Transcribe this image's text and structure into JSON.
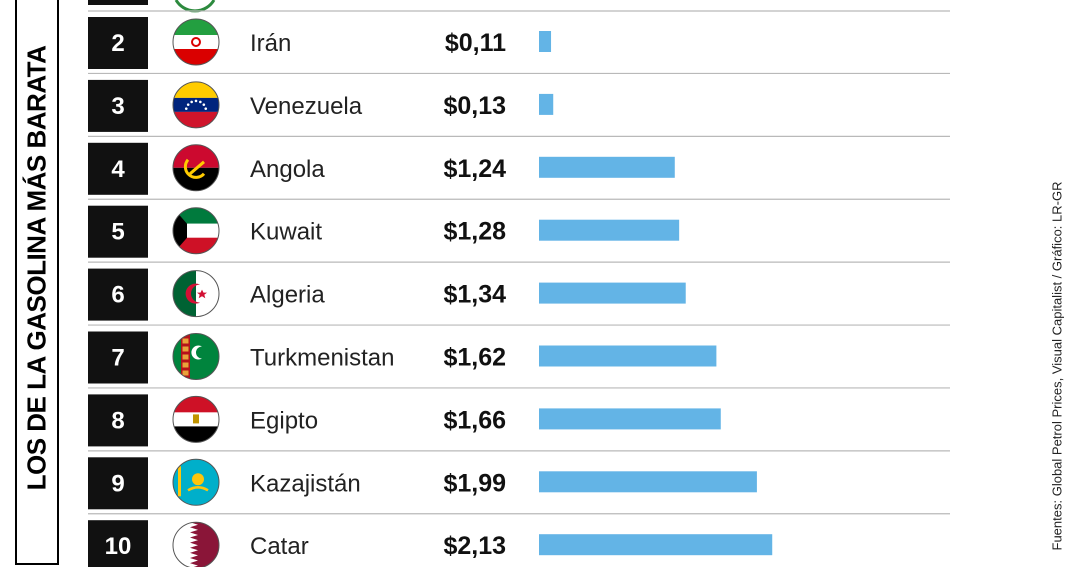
{
  "title": "LOS DE LA GASOLINA MÁS BARATA",
  "source": "Fuentes: Global Petrol Prices, Visual Capitalist / Gráfico: LR-GR",
  "colors": {
    "bar": "#63b4e6",
    "rank_box": "#111111",
    "divider": "#b9b9b9"
  },
  "chart_data": {
    "type": "bar",
    "orientation": "horizontal",
    "title": "LOS DE LA GASOLINA MÁS BARATA",
    "ranks": [
      "2",
      "3",
      "4",
      "5",
      "6",
      "7",
      "8",
      "9",
      "10"
    ],
    "categories": [
      "Irán",
      "Venezuela",
      "Angola",
      "Kuwait",
      "Algeria",
      "Turkmenistan",
      "Egipto",
      "Kazajistán",
      "Catar"
    ],
    "value_labels": [
      "$0,11",
      "$0,13",
      "$1,24",
      "$1,28",
      "$1,34",
      "$1,62",
      "$1,66",
      "$1,99",
      "$2,13"
    ],
    "values": [
      0.11,
      0.13,
      1.24,
      1.28,
      1.34,
      1.62,
      1.66,
      1.99,
      2.13
    ],
    "flag_icons": [
      "flag-iran-icon",
      "flag-venezuela-icon",
      "flag-angola-icon",
      "flag-kuwait-icon",
      "flag-algeria-icon",
      "flag-turkmenistan-icon",
      "flag-egypt-icon",
      "flag-kazakhstan-icon",
      "flag-qatar-icon"
    ],
    "grid": false
  }
}
